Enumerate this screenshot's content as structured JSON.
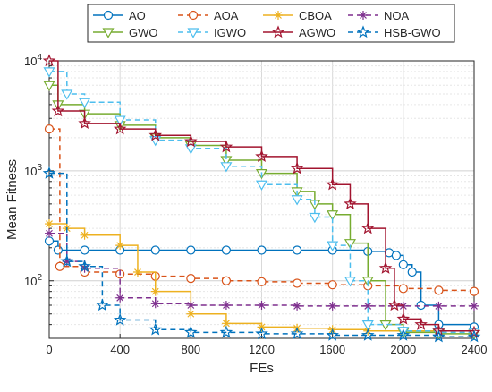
{
  "chart_data": {
    "type": "line",
    "xlabel": "FEs",
    "ylabel": "Mean Fitness",
    "xlim": [
      0,
      2400
    ],
    "ylim": [
      30,
      10000
    ],
    "yscale": "log",
    "grid": true,
    "legend_position": "top",
    "x_ticks": [
      {
        "value": 0,
        "label": "0"
      },
      {
        "value": 400,
        "label": "400"
      },
      {
        "value": 800,
        "label": "800"
      },
      {
        "value": 1200,
        "label": "1200"
      },
      {
        "value": 1600,
        "label": "1600"
      },
      {
        "value": 2000,
        "label": "2000"
      },
      {
        "value": 2400,
        "label": "2400"
      }
    ],
    "y_ticks": [
      {
        "value": 100,
        "base": "10",
        "exp": "2"
      },
      {
        "value": 1000,
        "base": "10",
        "exp": "3"
      },
      {
        "value": 10000,
        "base": "10",
        "exp": "4"
      }
    ],
    "series": [
      {
        "name": "AO",
        "color": "#0072BD",
        "dash": "solid",
        "marker": "circle",
        "x": [
          0,
          50,
          200,
          400,
          600,
          800,
          1000,
          1200,
          1400,
          1600,
          1800,
          1920,
          1960,
          2000,
          2050,
          2100,
          2200,
          2400
        ],
        "y": [
          230,
          190,
          190,
          190,
          190,
          190,
          190,
          190,
          190,
          190,
          185,
          180,
          170,
          140,
          120,
          60,
          40,
          38
        ]
      },
      {
        "name": "AOA",
        "color": "#D95319",
        "dash": "dashed",
        "marker": "circle",
        "x": [
          0,
          60,
          200,
          400,
          600,
          800,
          1000,
          1200,
          1400,
          1600,
          1800,
          2000,
          2200,
          2400
        ],
        "y": [
          2400,
          135,
          120,
          115,
          110,
          105,
          100,
          98,
          95,
          92,
          90,
          85,
          82,
          80
        ]
      },
      {
        "name": "CBOA",
        "color": "#EDB120",
        "dash": "solid",
        "marker": "asterisk",
        "x": [
          0,
          100,
          200,
          400,
          500,
          600,
          800,
          1000,
          1200,
          1400,
          1600,
          1800,
          2000,
          2200,
          2400
        ],
        "y": [
          330,
          300,
          260,
          210,
          120,
          80,
          50,
          41,
          38,
          37,
          36,
          35,
          35,
          35,
          35
        ]
      },
      {
        "name": "NOA",
        "color": "#7E2F8E",
        "dash": "dashed",
        "marker": "asterisk",
        "x": [
          0,
          100,
          200,
          400,
          600,
          800,
          1000,
          1200,
          1400,
          1600,
          1800,
          2000,
          2200,
          2400
        ],
        "y": [
          270,
          150,
          130,
          70,
          62,
          60,
          60,
          60,
          59,
          59,
          59,
          59,
          59,
          59
        ]
      },
      {
        "name": "GWO",
        "color": "#77AC30",
        "dash": "solid",
        "marker": "triangle-down",
        "x": [
          0,
          50,
          200,
          400,
          600,
          800,
          1000,
          1200,
          1400,
          1500,
          1600,
          1700,
          1800,
          1900,
          2000,
          2200,
          2400
        ],
        "y": [
          6000,
          4000,
          3300,
          2600,
          2000,
          1700,
          1250,
          950,
          650,
          500,
          400,
          220,
          100,
          40,
          34,
          33,
          33
        ]
      },
      {
        "name": "IGWO",
        "color": "#4DBEEE",
        "dash": "dashed",
        "marker": "triangle-down",
        "x": [
          0,
          100,
          200,
          400,
          600,
          800,
          1000,
          1200,
          1400,
          1500,
          1600,
          1700,
          1800,
          2000,
          2200,
          2400
        ],
        "y": [
          8000,
          5000,
          4200,
          2900,
          1900,
          1600,
          1100,
          750,
          550,
          380,
          210,
          100,
          40,
          35,
          34,
          34
        ]
      },
      {
        "name": "AGWO",
        "color": "#A2142F",
        "dash": "solid",
        "marker": "pentagram",
        "x": [
          0,
          50,
          200,
          400,
          600,
          800,
          1000,
          1200,
          1400,
          1600,
          1700,
          1800,
          1900,
          1950,
          2000,
          2100,
          2200,
          2400
        ],
        "y": [
          10000,
          3500,
          2700,
          2400,
          2100,
          1850,
          1650,
          1350,
          1050,
          750,
          500,
          300,
          130,
          60,
          45,
          40,
          35,
          34
        ]
      },
      {
        "name": "HSB-GWO",
        "color": "#0072BD",
        "dash": "dashed",
        "marker": "pentagram",
        "x": [
          0,
          100,
          200,
          300,
          400,
          600,
          800,
          1000,
          1200,
          1400,
          1600,
          1800,
          2000,
          2200,
          2400
        ],
        "y": [
          950,
          150,
          135,
          60,
          44,
          36,
          34,
          34,
          33,
          33,
          32,
          32,
          32,
          31,
          31
        ]
      }
    ]
  }
}
